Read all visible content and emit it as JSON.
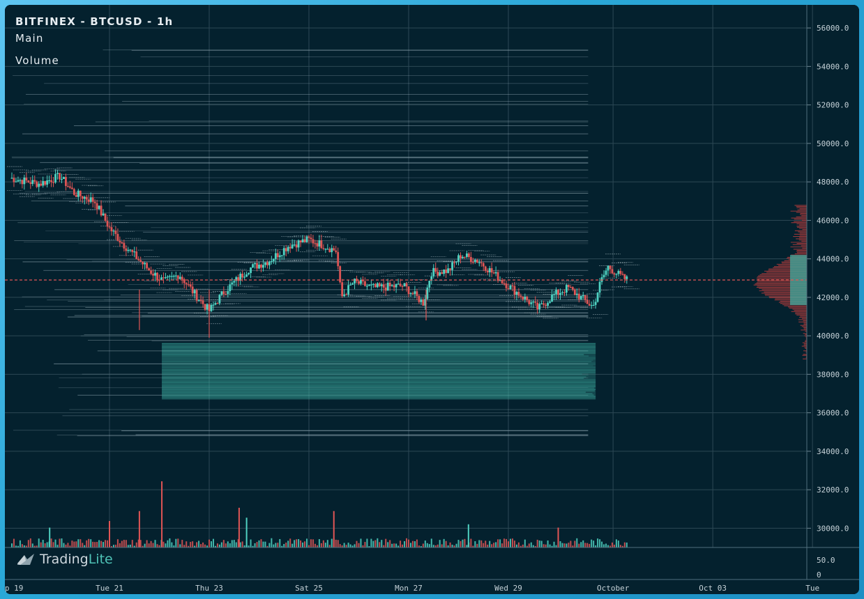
{
  "header": {
    "title": "BITFINEX - BTCUSD - 1h",
    "main_label": "Main",
    "volume_label": "Volume"
  },
  "brand": {
    "part1": "Trading",
    "part2": "Lite"
  },
  "colors": {
    "background": "#04212e",
    "up": "#4fd1c1",
    "down": "#e05555",
    "grid": "#2c4855",
    "liquidity": "#3fb3a5",
    "price_line": "#e05555"
  },
  "chart_data": {
    "type": "candlestick",
    "title": "BITFINEX - BTCUSD - 1h",
    "x_ticks": [
      "p 19",
      "Tue 21",
      "Thu 23",
      "Sat 25",
      "Mon 27",
      "Wed 29",
      "October",
      "Oct 03",
      "Tue"
    ],
    "y_ticks": [
      "56000.0",
      "54000.0",
      "52000.0",
      "50000.0",
      "48000.0",
      "46000.0",
      "44000.0",
      "42000.0",
      "40000.0",
      "38000.0",
      "36000.0",
      "34000.0",
      "32000.0",
      "30000.0"
    ],
    "volume_ticks": [
      "50.0",
      "0"
    ],
    "ylim": [
      29000,
      57200
    ],
    "current_price": 42900,
    "price_path": [
      [
        0,
        48200
      ],
      [
        0.6,
        47900
      ],
      [
        1.0,
        48300
      ],
      [
        1.3,
        47400
      ],
      [
        1.7,
        47000
      ],
      [
        2.0,
        45600
      ],
      [
        2.3,
        44700
      ],
      [
        2.8,
        43400
      ],
      [
        3.1,
        42800
      ],
      [
        3.4,
        43200
      ],
      [
        3.7,
        42200
      ],
      [
        4.0,
        41300
      ],
      [
        4.3,
        42300
      ],
      [
        4.8,
        43500
      ],
      [
        5.2,
        43900
      ],
      [
        5.6,
        44700
      ],
      [
        6.0,
        45000
      ],
      [
        6.3,
        44700
      ],
      [
        6.55,
        44400
      ],
      [
        6.65,
        42000
      ],
      [
        6.9,
        42800
      ],
      [
        7.3,
        42500
      ],
      [
        7.9,
        42600
      ],
      [
        8.3,
        41700
      ],
      [
        8.45,
        43300
      ],
      [
        8.8,
        43400
      ],
      [
        9.05,
        44200
      ],
      [
        9.4,
        43900
      ],
      [
        9.9,
        42800
      ],
      [
        10.3,
        42000
      ],
      [
        10.6,
        41400
      ],
      [
        10.9,
        42100
      ],
      [
        11.2,
        42500
      ],
      [
        11.5,
        41900
      ],
      [
        11.7,
        41500
      ],
      [
        11.85,
        42800
      ],
      [
        12.0,
        43600
      ],
      [
        12.3,
        43000
      ],
      [
        12.4,
        42900
      ]
    ],
    "liquidity_zone": {
      "price_low": 36700,
      "price_high": 39600
    },
    "volume_profile_range": [
      39600,
      44200
    ],
    "volume_spikes": [
      {
        "x": 0.8,
        "volume": 30,
        "dir": "up"
      },
      {
        "x": 2.0,
        "volume": 40,
        "dir": "down"
      },
      {
        "x": 2.6,
        "volume": 55,
        "dir": "down"
      },
      {
        "x": 3.05,
        "volume": 100,
        "dir": "down"
      },
      {
        "x": 4.6,
        "volume": 60,
        "dir": "down"
      },
      {
        "x": 4.75,
        "volume": 45,
        "dir": "up"
      },
      {
        "x": 6.5,
        "volume": 55,
        "dir": "down"
      },
      {
        "x": 9.2,
        "volume": 35,
        "dir": "up"
      },
      {
        "x": 11.0,
        "volume": 30,
        "dir": "down"
      }
    ]
  }
}
